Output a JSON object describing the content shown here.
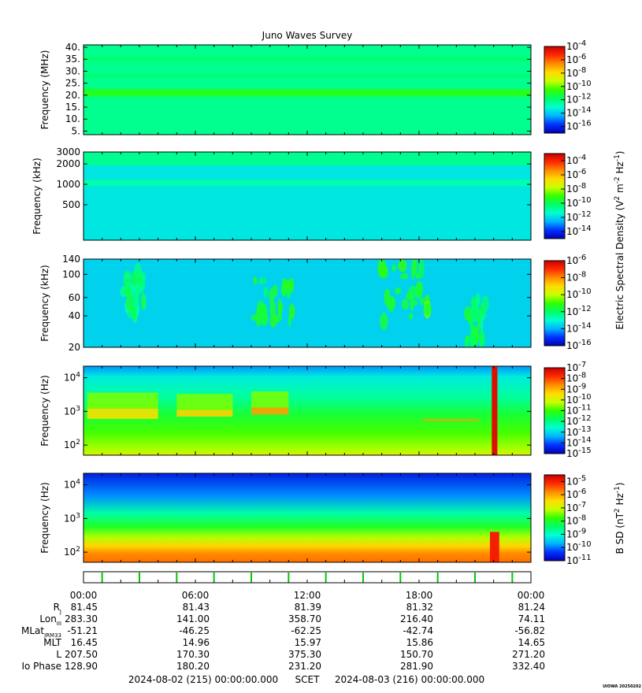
{
  "title": "Juno Waves Survey",
  "colors": {
    "colormap": [
      "#0000b4",
      "#0032ff",
      "#00b4ff",
      "#00ffd2",
      "#00ff64",
      "#32ff00",
      "#c8ff00",
      "#ffdc00",
      "#ff8c00",
      "#ff2a00",
      "#c80000"
    ],
    "ticks_green": "#00c800"
  },
  "chart_data": [
    {
      "type": "heatmap",
      "ylabel": "Frequency (MHz)",
      "yscale": "linear",
      "ylim": [
        3.5,
        41
      ],
      "yticks": [
        5,
        10,
        15,
        20,
        25,
        30,
        35,
        40
      ],
      "ytick_labels": [
        "5.",
        "10.",
        "15.",
        "20.",
        "25.",
        "30.",
        "35.",
        "40."
      ],
      "colorbar": {
        "log_min": -17,
        "log_max": -4,
        "ticks": [
          {
            "exp": "-4"
          },
          {
            "exp": "-6"
          },
          {
            "exp": "-8"
          },
          {
            "exp": "-10"
          },
          {
            "exp": "-12"
          },
          {
            "exp": "-14"
          },
          {
            "exp": "-16"
          }
        ]
      },
      "background_level": -12.3,
      "bands": [
        {
          "y": 21,
          "width": 1.6,
          "level": -10.8
        },
        {
          "y": 35,
          "width": 0.8,
          "level": -11.8
        },
        {
          "y": 28,
          "width": 0.6,
          "level": -11.9
        }
      ]
    },
    {
      "type": "heatmap",
      "ylabel": "Frequency (kHz)",
      "yscale": "log",
      "ylim": [
        150,
        3000
      ],
      "yticks": [
        500,
        1000,
        2000,
        3000
      ],
      "ytick_labels": [
        "500",
        "1000",
        "2000",
        "3000"
      ],
      "colorbar": {
        "log_min": -15,
        "log_max": -3,
        "ticks": [
          {
            "exp": "-4"
          },
          {
            "exp": "-6"
          },
          {
            "exp": "-8"
          },
          {
            "exp": "-10"
          },
          {
            "exp": "-12"
          },
          {
            "exp": "-14"
          }
        ]
      },
      "background_level": -11.8,
      "bands": [
        {
          "y": 2400,
          "width": 0.1,
          "level": -10.6
        },
        {
          "y": 1050,
          "width": 0.05,
          "level": -11.0
        }
      ]
    },
    {
      "type": "heatmap",
      "ylabel": "Frequency (kHz)",
      "yscale": "log",
      "ylim": [
        20,
        140
      ],
      "yticks": [
        20,
        40,
        60,
        100,
        140
      ],
      "ytick_labels": [
        "20",
        "40",
        "60",
        "100",
        "140"
      ],
      "colorbar": {
        "log_min": -16,
        "log_max": -6,
        "ticks": [
          {
            "exp": "-6"
          },
          {
            "exp": "-8"
          },
          {
            "exp": "-10"
          },
          {
            "exp": "-12"
          },
          {
            "exp": "-14"
          },
          {
            "exp": "-16"
          }
        ]
      },
      "background_level": -13.6,
      "features": [
        {
          "t0": 2.0,
          "t1": 3.5,
          "f0": 40,
          "f1": 110,
          "level": -12.8
        },
        {
          "t0": 9.0,
          "t1": 11.2,
          "f0": 35,
          "f1": 100,
          "level": -12.2
        },
        {
          "t0": 16.0,
          "t1": 18.5,
          "f0": 35,
          "f1": 130,
          "level": -11.8
        },
        {
          "t0": 20.5,
          "t1": 21.6,
          "f0": 20,
          "f1": 60,
          "level": -12.5
        }
      ]
    },
    {
      "type": "heatmap",
      "ylabel": "Frequency (Hz)",
      "yscale": "log",
      "ylim": [
        50,
        22000
      ],
      "yticks": [
        100,
        1000,
        10000
      ],
      "ytick_labels": [
        {
          "base": "10",
          "exp": "2"
        },
        {
          "base": "10",
          "exp": "3"
        },
        {
          "base": "10",
          "exp": "4"
        }
      ],
      "colorbar": {
        "log_min": -15,
        "log_max": -7,
        "ticks": [
          {
            "exp": "-7"
          },
          {
            "exp": "-8"
          },
          {
            "exp": "-9"
          },
          {
            "exp": "-10"
          },
          {
            "exp": "-11"
          },
          {
            "exp": "-12"
          },
          {
            "exp": "-13"
          },
          {
            "exp": "-14"
          },
          {
            "exp": "-15"
          }
        ]
      },
      "features": [
        {
          "t0": 0.2,
          "t1": 4.0,
          "f0": 600,
          "f1": 1200,
          "level": -9.5
        },
        {
          "t0": 5.0,
          "t1": 8.0,
          "f0": 700,
          "f1": 1100,
          "level": -9.3
        },
        {
          "t0": 9.0,
          "t1": 11.0,
          "f0": 800,
          "f1": 1300,
          "level": -8.8
        },
        {
          "t0": 18.2,
          "t1": 21.2,
          "f0": 530,
          "f1": 580,
          "level": -8.8
        },
        {
          "t0": 21.9,
          "t1": 22.2,
          "f0": 50,
          "f1": 22000,
          "level": -7.3
        }
      ]
    },
    {
      "type": "heatmap",
      "ylabel": "Frequency (Hz)",
      "yscale": "log",
      "ylim": [
        50,
        22000
      ],
      "yticks": [
        100,
        1000,
        10000
      ],
      "ytick_labels": [
        {
          "base": "10",
          "exp": "2"
        },
        {
          "base": "10",
          "exp": "3"
        },
        {
          "base": "10",
          "exp": "4"
        }
      ],
      "colorbar": {
        "log_min": -11,
        "log_max": -4.5,
        "ticks": [
          {
            "exp": "-5"
          },
          {
            "exp": "-6"
          },
          {
            "exp": "-7"
          },
          {
            "exp": "-8"
          },
          {
            "exp": "-9"
          },
          {
            "exp": "-10"
          },
          {
            "exp": "-11"
          }
        ]
      },
      "features": [
        {
          "t0": 21.8,
          "t1": 22.3,
          "f0": 50,
          "f1": 400,
          "level": -5.0
        }
      ]
    }
  ],
  "colorbar_labels": {
    "electric": {
      "pre": "Electric Spectral Density (V",
      "s1": "2",
      "mid": " m",
      "s2": "-2",
      "mid2": " Hz",
      "s3": "-1",
      "post": ")"
    },
    "magnetic": {
      "pre": "B SD (nT",
      "s1": "2",
      "mid": " Hz",
      "s2": "-1",
      "post": ")"
    }
  },
  "time_axis": {
    "range_hours": [
      0,
      24
    ],
    "labels": [
      "00:00",
      "06:00",
      "12:00",
      "18:00",
      "00:00"
    ],
    "tick_hours": [
      0,
      1,
      2,
      3,
      4,
      5,
      6,
      7,
      8,
      9,
      10,
      11,
      12,
      13,
      14,
      15,
      16,
      17,
      18,
      19,
      20,
      21,
      22,
      23,
      24
    ],
    "green_markers": [
      1,
      3,
      5,
      7,
      9,
      11,
      13,
      15,
      17,
      19,
      21,
      23
    ]
  },
  "ephemeris": [
    {
      "label": "R",
      "sub": "J",
      "values": [
        "81.45",
        "81.43",
        "81.39",
        "81.32",
        "81.24"
      ]
    },
    {
      "label": "Lon",
      "sub": "III",
      "values": [
        "283.30",
        "141.00",
        "358.70",
        "216.40",
        "74.11"
      ]
    },
    {
      "label": "MLat",
      "sub": "JRM33",
      "values": [
        "-51.21",
        "-46.25",
        "-62.25",
        "-42.74",
        "-56.82"
      ]
    },
    {
      "label": "MLT",
      "sub": "",
      "values": [
        "16.45",
        "14.96",
        "15.97",
        "15.86",
        "14.65"
      ]
    },
    {
      "label": "L",
      "sub": "",
      "values": [
        "207.50",
        "170.30",
        "375.30",
        "150.70",
        "271.20"
      ]
    },
    {
      "label": "Io Phase",
      "sub": "",
      "values": [
        "128.90",
        "180.20",
        "231.20",
        "281.90",
        "332.40"
      ]
    }
  ],
  "scet": {
    "start": "2024-08-02 (215) 00:00:00.000",
    "label": "SCET",
    "end": "2024-08-03 (216) 00:00:00.000"
  },
  "footer_tag": "UIOWA 20250202"
}
